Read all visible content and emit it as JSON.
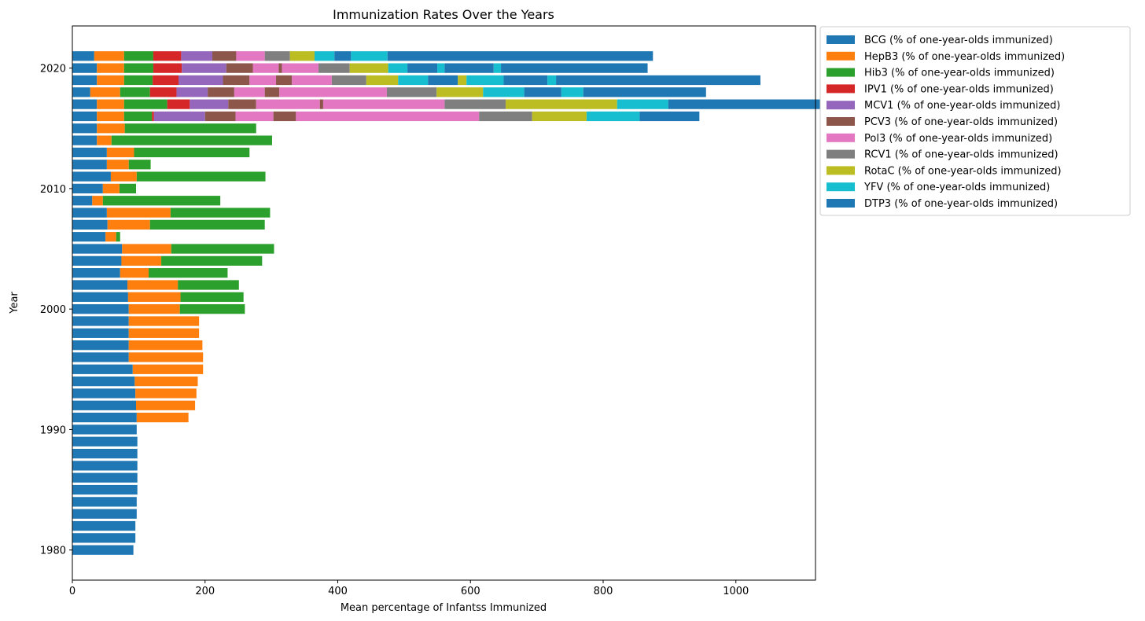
{
  "chart_data": {
    "type": "bar",
    "orientation": "horizontal",
    "stacked": true,
    "title": "Immunization Rates Over the Years",
    "xlabel": "Mean percentage of Infantss Immunized",
    "ylabel": "Year",
    "xlim": [
      0,
      1120
    ],
    "ylim": [
      1977.5,
      2023.5
    ],
    "xticks": [
      0,
      200,
      400,
      600,
      800,
      1000
    ],
    "yticks": [
      1980,
      1990,
      2000,
      2010,
      2020
    ],
    "grid": false,
    "legend_position": "outside-right",
    "years": [
      1980,
      1981,
      1982,
      1983,
      1984,
      1985,
      1986,
      1987,
      1988,
      1989,
      1990,
      1991,
      1992,
      1993,
      1994,
      1995,
      1996,
      1997,
      1998,
      1999,
      2000,
      2001,
      2002,
      2003,
      2004,
      2005,
      2006,
      2007,
      2008,
      2009,
      2010,
      2011,
      2012,
      2013,
      2014,
      2015,
      2016,
      2017,
      2018,
      2019,
      2020,
      2021
    ],
    "series": [
      {
        "name": "BCG (% of one-year-olds immunized)",
        "color": "#1f77b4",
        "values": [
          92,
          95,
          95,
          97,
          97,
          98,
          98,
          98,
          98,
          98,
          97,
          97,
          96,
          95,
          94,
          91,
          85,
          85,
          85,
          85,
          85,
          84,
          83,
          72,
          74,
          75,
          50,
          53,
          52,
          30,
          46,
          58,
          52,
          52,
          37,
          37,
          37,
          37,
          27,
          37,
          37,
          33
        ]
      },
      {
        "name": "HepB3 (% of one-year-olds immunized)",
        "color": "#ff7f0e",
        "values": [
          0,
          0,
          0,
          0,
          0,
          0,
          0,
          0,
          0,
          0,
          0,
          78,
          89,
          92,
          95,
          106,
          112,
          111,
          106,
          106,
          77,
          79,
          76,
          43,
          60,
          74,
          16,
          64,
          96,
          16,
          25,
          39,
          33,
          41,
          22,
          42,
          41,
          41,
          45,
          41,
          41,
          45
        ]
      },
      {
        "name": "Hib3 (% of one-year-olds immunized)",
        "color": "#2ca02c",
        "values": [
          0,
          0,
          0,
          0,
          0,
          0,
          0,
          0,
          0,
          0,
          0,
          0,
          0,
          0,
          0,
          0,
          0,
          0,
          0,
          0,
          98,
          95,
          92,
          119,
          152,
          155,
          6,
          173,
          150,
          177,
          25,
          194,
          33,
          174,
          242,
          198,
          42,
          65,
          45,
          43,
          44,
          44
        ]
      },
      {
        "name": "IPV1 (% of one-year-olds immunized)",
        "color": "#d62728",
        "values": [
          0,
          0,
          0,
          0,
          0,
          0,
          0,
          0,
          0,
          0,
          0,
          0,
          0,
          0,
          0,
          0,
          0,
          0,
          0,
          0,
          0,
          0,
          0,
          0,
          0,
          0,
          0,
          0,
          0,
          0,
          0,
          0,
          0,
          0,
          0,
          0,
          3,
          34,
          40,
          39,
          43,
          42
        ]
      },
      {
        "name": "MCV1 (% of one-year-olds immunized)",
        "color": "#9467bd",
        "values": [
          0,
          0,
          0,
          0,
          0,
          0,
          0,
          0,
          0,
          0,
          0,
          0,
          0,
          0,
          0,
          0,
          0,
          0,
          0,
          0,
          0,
          0,
          0,
          0,
          0,
          0,
          0,
          0,
          0,
          0,
          0,
          0,
          0,
          0,
          0,
          0,
          77,
          58,
          47,
          67,
          67,
          47
        ]
      },
      {
        "name": "PCV3 (% of one-year-olds immunized)",
        "color": "#8c564b",
        "values": [
          0,
          0,
          0,
          0,
          0,
          0,
          0,
          0,
          0,
          0,
          0,
          0,
          0,
          0,
          0,
          0,
          0,
          0,
          0,
          0,
          0,
          0,
          0,
          0,
          0,
          0,
          0,
          0,
          0,
          0,
          0,
          0,
          0,
          0,
          0,
          0,
          46,
          42,
          40,
          40,
          40,
          36
        ]
      },
      {
        "name": "Pol3 (% of one-year-olds immunized)",
        "color": "#e377c2",
        "values": [
          0,
          0,
          0,
          0,
          0,
          0,
          0,
          0,
          0,
          0,
          0,
          0,
          0,
          0,
          0,
          0,
          0,
          0,
          0,
          0,
          0,
          0,
          0,
          0,
          0,
          0,
          0,
          0,
          0,
          0,
          0,
          0,
          0,
          0,
          0,
          0,
          57,
          96,
          46,
          40,
          39,
          43
        ]
      },
      {
        "name": "PCV3 (% of one-year-olds immunized)",
        "color": "#8c564b",
        "legend": false,
        "values": [
          0,
          0,
          0,
          0,
          0,
          0,
          0,
          0,
          0,
          0,
          0,
          0,
          0,
          0,
          0,
          0,
          0,
          0,
          0,
          0,
          0,
          0,
          0,
          0,
          0,
          0,
          0,
          0,
          0,
          0,
          0,
          0,
          0,
          0,
          0,
          0,
          34,
          5,
          22,
          24,
          5,
          0
        ]
      },
      {
        "name": "Pol3 (% of one-year-olds immunized)",
        "color": "#e377c2",
        "legend": false,
        "values": [
          0,
          0,
          0,
          0,
          0,
          0,
          0,
          0,
          0,
          0,
          0,
          0,
          0,
          0,
          0,
          0,
          0,
          0,
          0,
          0,
          0,
          0,
          0,
          0,
          0,
          0,
          0,
          0,
          0,
          0,
          0,
          0,
          0,
          0,
          0,
          0,
          276,
          183,
          162,
          60,
          55,
          0
        ]
      },
      {
        "name": "RCV1 (% of one-year-olds immunized)",
        "color": "#7f7f7f",
        "values": [
          0,
          0,
          0,
          0,
          0,
          0,
          0,
          0,
          0,
          0,
          0,
          0,
          0,
          0,
          0,
          0,
          0,
          0,
          0,
          0,
          0,
          0,
          0,
          0,
          0,
          0,
          0,
          0,
          0,
          0,
          0,
          0,
          0,
          0,
          0,
          0,
          80,
          92,
          75,
          52,
          47,
          38
        ]
      },
      {
        "name": "RotaC (% of one-year-olds immunized)",
        "color": "#bcbd22",
        "values": [
          0,
          0,
          0,
          0,
          0,
          0,
          0,
          0,
          0,
          0,
          0,
          0,
          0,
          0,
          0,
          0,
          0,
          0,
          0,
          0,
          0,
          0,
          0,
          0,
          0,
          0,
          0,
          0,
          0,
          0,
          0,
          0,
          0,
          0,
          0,
          0,
          82,
          168,
          70,
          48,
          58,
          37
        ]
      },
      {
        "name": "YFV (% of one-year-olds immunized)",
        "color": "#17becf",
        "values": [
          0,
          0,
          0,
          0,
          0,
          0,
          0,
          0,
          0,
          0,
          0,
          0,
          0,
          0,
          0,
          0,
          0,
          0,
          0,
          0,
          0,
          0,
          0,
          0,
          0,
          0,
          0,
          0,
          0,
          0,
          0,
          0,
          0,
          0,
          0,
          0,
          80,
          77,
          62,
          45,
          29,
          30
        ]
      },
      {
        "name": "DTP3 (% of one-year-olds immunized)",
        "color": "#1f77b4",
        "values": [
          0,
          0,
          0,
          0,
          0,
          0,
          0,
          0,
          0,
          0,
          0,
          0,
          0,
          0,
          0,
          0,
          0,
          0,
          0,
          0,
          0,
          0,
          0,
          0,
          0,
          0,
          0,
          0,
          0,
          0,
          0,
          0,
          0,
          0,
          0,
          0,
          90,
          230,
          56,
          45,
          45,
          25
        ]
      },
      {
        "name": "RotaC (% of one-year-olds immunized)",
        "color": "#bcbd22",
        "legend": false,
        "values": [
          0,
          0,
          0,
          0,
          0,
          0,
          0,
          0,
          0,
          0,
          0,
          0,
          0,
          0,
          0,
          0,
          0,
          0,
          0,
          0,
          0,
          0,
          0,
          0,
          0,
          0,
          0,
          0,
          0,
          0,
          0,
          0,
          0,
          0,
          0,
          0,
          0,
          0,
          0,
          13,
          0,
          0
        ]
      },
      {
        "name": "YFV (% of one-year-olds immunized)",
        "color": "#17becf",
        "legend": false,
        "values": [
          0,
          0,
          0,
          0,
          0,
          0,
          0,
          0,
          0,
          0,
          0,
          0,
          0,
          0,
          0,
          0,
          0,
          0,
          0,
          0,
          0,
          0,
          0,
          0,
          0,
          0,
          0,
          0,
          0,
          0,
          0,
          0,
          0,
          0,
          0,
          0,
          0,
          0,
          33,
          56,
          11,
          55
        ]
      },
      {
        "name": "DTP3 (% of one-year-olds immunized)",
        "color": "#1f77b4",
        "legend": false,
        "values": [
          0,
          0,
          0,
          0,
          0,
          0,
          0,
          0,
          0,
          0,
          0,
          0,
          0,
          0,
          0,
          0,
          0,
          0,
          0,
          0,
          0,
          0,
          0,
          0,
          0,
          0,
          0,
          0,
          0,
          0,
          0,
          0,
          0,
          0,
          0,
          0,
          0,
          0,
          185,
          66,
          74,
          0
        ]
      },
      {
        "name": "YFV (% of one-year-olds immunized)",
        "color": "#17becf",
        "legend": false,
        "values": [
          0,
          0,
          0,
          0,
          0,
          0,
          0,
          0,
          0,
          0,
          0,
          0,
          0,
          0,
          0,
          0,
          0,
          0,
          0,
          0,
          0,
          0,
          0,
          0,
          0,
          0,
          0,
          0,
          0,
          0,
          0,
          0,
          0,
          0,
          0,
          0,
          0,
          0,
          0,
          13,
          11,
          0
        ]
      },
      {
        "name": "DTP3 (% of one-year-olds immunized)",
        "color": "#1f77b4",
        "legend": false,
        "values": [
          0,
          0,
          0,
          0,
          0,
          0,
          0,
          0,
          0,
          0,
          0,
          0,
          0,
          0,
          0,
          0,
          0,
          0,
          0,
          0,
          0,
          0,
          0,
          0,
          0,
          0,
          0,
          0,
          0,
          0,
          0,
          0,
          0,
          0,
          0,
          0,
          0,
          0,
          0,
          308,
          221,
          400
        ]
      }
    ]
  }
}
